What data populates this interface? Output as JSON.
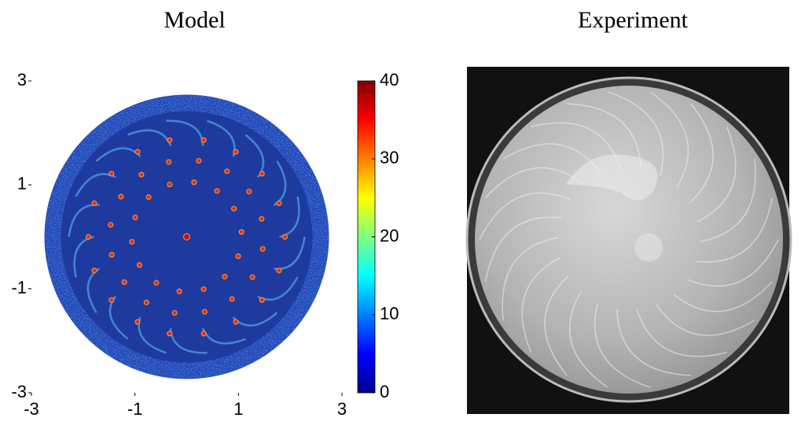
{
  "chart_data": [
    {
      "type": "heatmap",
      "title": "Model",
      "xlim": [
        -3,
        3
      ],
      "ylim": [
        -3,
        3
      ],
      "xticks": [
        -3,
        -1,
        1,
        3
      ],
      "yticks": [
        -3,
        -1,
        1,
        3
      ],
      "colorbar": {
        "lim": [
          0,
          40
        ],
        "ticks": [
          0,
          10,
          20,
          30,
          40
        ]
      }
    },
    {
      "type": "image",
      "title": "Experiment"
    }
  ]
}
